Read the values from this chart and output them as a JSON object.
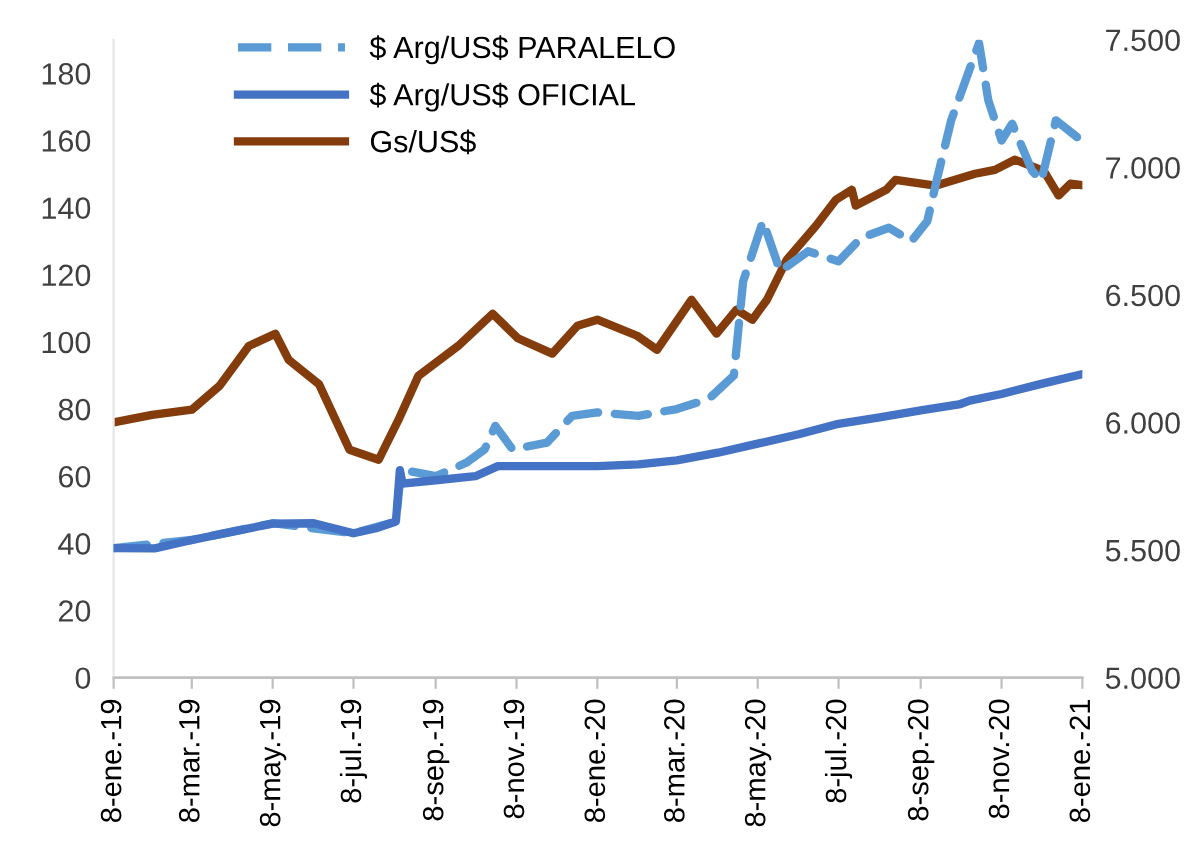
{
  "chart_data": {
    "type": "line",
    "legend": "top left",
    "grid": false,
    "line_style": "solid",
    "marker": "none",
    "xlim": [
      "2019-01-08",
      "2021-01-08"
    ],
    "xticks": [
      {
        "value": "2019-01-08",
        "label": "8-ene.-19"
      },
      {
        "value": "2019-03-08",
        "label": "8-mar.-19"
      },
      {
        "value": "2019-05-08",
        "label": "8-may.-19"
      },
      {
        "value": "2019-07-08",
        "label": "8-jul.-19"
      },
      {
        "value": "2019-09-08",
        "label": "8-sep.-19"
      },
      {
        "value": "2019-11-08",
        "label": "8-nov.-19"
      },
      {
        "value": "2020-01-08",
        "label": "8-ene.-20"
      },
      {
        "value": "2020-03-08",
        "label": "8-mar.-20"
      },
      {
        "value": "2020-05-08",
        "label": "8-may.-20"
      },
      {
        "value": "2020-07-08",
        "label": "8-jul.-20"
      },
      {
        "value": "2020-09-08",
        "label": "8-sep.-20"
      },
      {
        "value": "2020-11-08",
        "label": "8-nov.-20"
      },
      {
        "value": "2021-01-08",
        "label": "8-ene.-21"
      }
    ],
    "ylim": [
      0,
      190
    ],
    "yticks": [
      0,
      20,
      40,
      60,
      80,
      100,
      120,
      140,
      160,
      180
    ],
    "y2lim": [
      5000,
      7500
    ],
    "y2ticks": [
      {
        "value": 5000,
        "label": "5.000"
      },
      {
        "value": 5500,
        "label": "5.500"
      },
      {
        "value": 6000,
        "label": "6.000"
      },
      {
        "value": 6500,
        "label": "6.500"
      },
      {
        "value": 7000,
        "label": "7.000"
      },
      {
        "value": 7500,
        "label": "7.500"
      }
    ],
    "series": [
      {
        "name": "$ Arg/US$ PARALELO",
        "color": "#5b9bd5",
        "line_style": "dashed",
        "x": [
          "2019-01-08",
          "2019-03-08",
          "2019-05-08",
          "2019-07-08",
          "2019-08-09",
          "2019-08-13",
          "2019-09-08",
          "2019-10-01",
          "2019-10-15",
          "2019-10-23",
          "2019-11-05",
          "2019-12-01",
          "2019-12-20",
          "2020-01-08",
          "2020-02-08",
          "2020-03-08",
          "2020-04-01",
          "2020-04-20",
          "2020-04-27",
          "2020-05-12",
          "2020-05-25",
          "2020-06-15",
          "2020-07-08",
          "2020-07-25",
          "2020-08-15",
          "2020-09-01",
          "2020-09-13",
          "2020-09-20",
          "2020-10-01",
          "2020-10-22",
          "2020-10-29",
          "2020-11-08",
          "2020-11-16",
          "2020-12-01",
          "2020-12-08",
          "2020-12-19",
          "2021-01-04"
        ],
        "values": [
          38.6,
          41,
          46,
          43,
          46.5,
          62,
          60,
          64,
          68,
          75,
          68,
          70,
          78,
          79,
          78,
          80,
          83,
          90,
          118,
          136,
          121,
          127,
          124,
          131,
          134,
          130,
          136,
          148,
          166,
          189,
          172,
          160,
          165,
          151,
          148,
          166,
          161
        ]
      },
      {
        "name": "$ Arg/US$ OFICIAL",
        "color": "#4472c4",
        "x": [
          "2019-01-08",
          "2019-02-08",
          "2019-03-08",
          "2019-04-08",
          "2019-05-08",
          "2019-06-08",
          "2019-07-08",
          "2019-07-25",
          "2019-08-09",
          "2019-08-12",
          "2019-08-14",
          "2019-09-08",
          "2019-10-08",
          "2019-10-25",
          "2019-11-08",
          "2019-12-08",
          "2020-01-08",
          "2020-02-08",
          "2020-03-08",
          "2020-04-08",
          "2020-05-08",
          "2020-06-08",
          "2020-07-08",
          "2020-08-08",
          "2020-09-08",
          "2020-10-08",
          "2020-10-15",
          "2020-11-08",
          "2020-12-08",
          "2021-01-08"
        ],
        "values": [
          38.6,
          38.5,
          41,
          43.5,
          45.9,
          46,
          43,
          44.5,
          46.5,
          61.8,
          57.8,
          58.8,
          60,
          63,
          63,
          63,
          63,
          63.5,
          64.7,
          67,
          69.7,
          72.5,
          75.6,
          77.5,
          79.6,
          81.5,
          82.5,
          84.5,
          87.5,
          90.4
        ]
      },
      {
        "name": "Gs/US$",
        "color": "#843c0c",
        "axis": "y2",
        "x": [
          "2019-01-08",
          "2019-02-06",
          "2019-03-08",
          "2019-03-29",
          "2019-04-20",
          "2019-05-10",
          "2019-05-20",
          "2019-06-12",
          "2019-07-05",
          "2019-07-27",
          "2019-08-11",
          "2019-08-26",
          "2019-09-25",
          "2019-10-21",
          "2019-11-09",
          "2019-12-05",
          "2019-12-24",
          "2020-01-08",
          "2020-02-07",
          "2020-02-22",
          "2020-03-19",
          "2020-04-07",
          "2020-04-22",
          "2020-05-04",
          "2020-05-15",
          "2020-05-30",
          "2020-06-21",
          "2020-07-06",
          "2020-07-18",
          "2020-07-21",
          "2020-08-13",
          "2020-08-20",
          "2020-09-19",
          "2020-10-19",
          "2020-11-03",
          "2020-11-18",
          "2020-12-03",
          "2020-12-10",
          "2020-12-21",
          "2020-12-30",
          "2021-01-08"
        ],
        "values": [
          6000,
          6030,
          6050,
          6144,
          6300,
          6348,
          6246,
          6150,
          5893,
          5854,
          6011,
          6183,
          6300,
          6426,
          6330,
          6270,
          6379,
          6403,
          6340,
          6285,
          6481,
          6348,
          6442,
          6403,
          6481,
          6638,
          6771,
          6873,
          6912,
          6850,
          6912,
          6951,
          6928,
          6975,
          6990,
          7030,
          7000,
          6985,
          6890,
          6936,
          6930
        ]
      }
    ]
  }
}
